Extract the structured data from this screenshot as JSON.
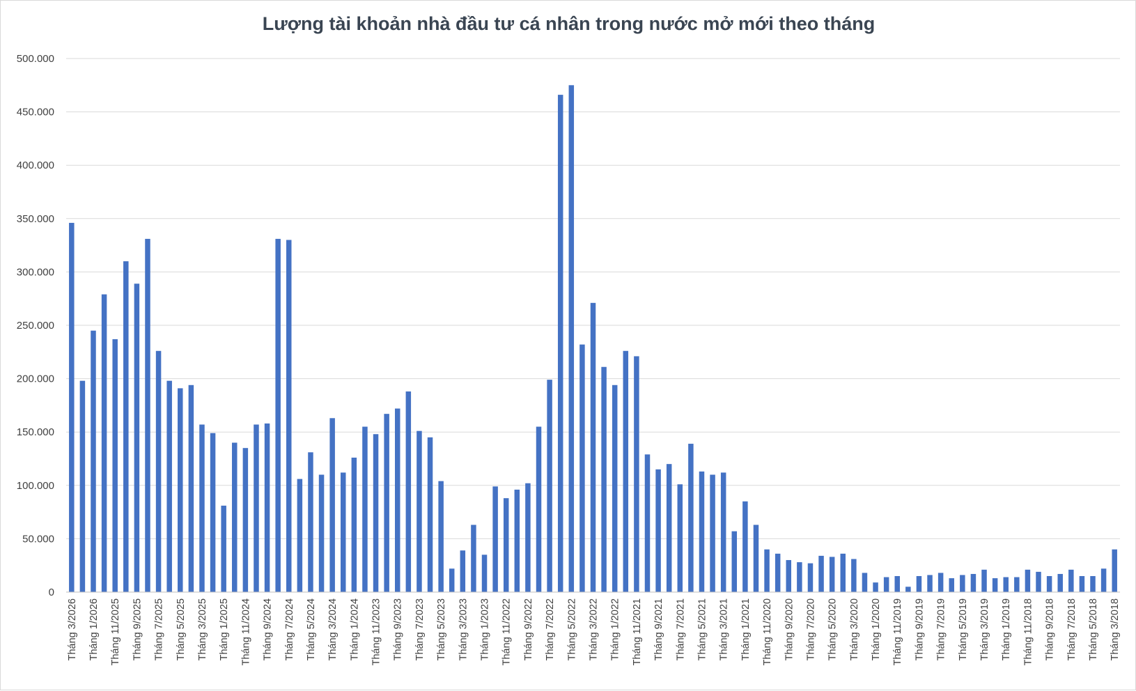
{
  "chart_data": {
    "type": "bar",
    "title": "Lượng tài khoản nhà đầu tư cá nhân trong nước mở mới theo tháng",
    "xlabel": "",
    "ylabel": "",
    "ylim": [
      0,
      500000
    ],
    "yticks": [
      0,
      50000,
      100000,
      150000,
      200000,
      250000,
      300000,
      350000,
      400000,
      450000,
      500000
    ],
    "ytick_labels": [
      "0",
      "50.000",
      "100.000",
      "150.000",
      "200.000",
      "250.000",
      "300.000",
      "350.000",
      "400.000",
      "450.000",
      "500.000"
    ],
    "grid": true,
    "legend": "none",
    "bar_color": "#4472c4",
    "categories": [
      "Tháng 3/2026",
      "Tháng 2/2026",
      "Tháng 1/2026",
      "Tháng 12/2025",
      "Tháng 11/2025",
      "Tháng 10/2025",
      "Tháng 9/2025",
      "Tháng 8/2025",
      "Tháng 7/2025",
      "Tháng 6/2025",
      "Tháng 5/2025",
      "Tháng 4/2025",
      "Tháng 3/2025",
      "Tháng 2/2025",
      "Tháng 1/2025",
      "Tháng 12/2024",
      "Tháng 11/2024",
      "Tháng 10/2024",
      "Tháng 9/2024",
      "Tháng 8/2024",
      "Tháng 7/2024",
      "Tháng 6/2024",
      "Tháng 5/2024",
      "Tháng 4/2024",
      "Tháng 3/2024",
      "Tháng 2/2024",
      "Tháng 1/2024",
      "Tháng 12/2023",
      "Tháng 11/2023",
      "Tháng 10/2023",
      "Tháng 9/2023",
      "Tháng 8/2023",
      "Tháng 7/2023",
      "Tháng 6/2023",
      "Tháng 5/2023",
      "Tháng 4/2023",
      "Tháng 3/2023",
      "Tháng 2/2023",
      "Tháng 1/2023",
      "Tháng 12/2022",
      "Tháng 11/2022",
      "Tháng 10/2022",
      "Tháng 9/2022",
      "Tháng 8/2022",
      "Tháng 7/2022",
      "Tháng 6/2022",
      "Tháng 5/2022",
      "Tháng 4/2022",
      "Tháng 3/2022",
      "Tháng 2/2022",
      "Tháng 1/2022",
      "Tháng 12/2021",
      "Tháng 11/2021",
      "Tháng 10/2021",
      "Tháng 9/2021",
      "Tháng 8/2021",
      "Tháng 7/2021",
      "Tháng 6/2021",
      "Tháng 5/2021",
      "Tháng 4/2021",
      "Tháng 3/2021",
      "Tháng 2/2021",
      "Tháng 1/2021",
      "Tháng 12/2020",
      "Tháng 11/2020",
      "Tháng 10/2020",
      "Tháng 9/2020",
      "Tháng 8/2020",
      "Tháng 7/2020",
      "Tháng 6/2020",
      "Tháng 5/2020",
      "Tháng 4/2020",
      "Tháng 3/2020",
      "Tháng 2/2020",
      "Tháng 1/2020",
      "Tháng 12/2019",
      "Tháng 11/2019",
      "Tháng 10/2019",
      "Tháng 9/2019",
      "Tháng 8/2019",
      "Tháng 7/2019",
      "Tháng 6/2019",
      "Tháng 5/2019",
      "Tháng 4/2019",
      "Tháng 3/2019",
      "Tháng 2/2019",
      "Tháng 1/2019",
      "Tháng 12/2018",
      "Tháng 11/2018",
      "Tháng 10/2018",
      "Tháng 9/2018",
      "Tháng 8/2018",
      "Tháng 7/2018",
      "Tháng 6/2018",
      "Tháng 5/2018",
      "Tháng 4/2018",
      "Tháng 3/2018"
    ],
    "shown_category_labels": [
      "Tháng 3/2026",
      "Tháng 1/2026",
      "Tháng 11/2025",
      "Tháng 9/2025",
      "Tháng 7/2025",
      "Tháng 5/2025",
      "Tháng 3/2025",
      "Tháng 1/2025",
      "Tháng 11/2024",
      "Tháng 9/2024",
      "Tháng 7/2024",
      "Tháng 5/2024",
      "Tháng 3/2024",
      "Tháng 1/2024",
      "Tháng 11/2023",
      "Tháng 9/2023",
      "Tháng 7/2023",
      "Tháng 5/2023",
      "Tháng 3/2023",
      "Tháng 1/2023",
      "Tháng 11/2022",
      "Tháng 9/2022",
      "Tháng 7/2022",
      "Tháng 5/2022",
      "Tháng 3/2022",
      "Tháng 1/2022",
      "Tháng 11/2021",
      "Tháng 9/2021",
      "Tháng 7/2021",
      "Tháng 5/2021",
      "Tháng 3/2021",
      "Tháng 1/2021",
      "Tháng 11/2020",
      "Tháng 9/2020",
      "Tháng 7/2020",
      "Tháng 5/2020",
      "Tháng 3/2020",
      "Tháng 1/2020",
      "Tháng 11/2019",
      "Tháng 9/2019",
      "Tháng 7/2019",
      "Tháng 5/2019",
      "Tháng 3/2019",
      "Tháng 1/2019",
      "Tháng 11/2018",
      "Tháng 9/2018",
      "Tháng 7/2018",
      "Tháng 5/2018",
      "Tháng 3/2018"
    ],
    "values": [
      346000,
      198000,
      245000,
      279000,
      237000,
      310000,
      289000,
      331000,
      226000,
      198000,
      191000,
      194000,
      157000,
      149000,
      81000,
      140000,
      135000,
      157000,
      158000,
      331000,
      330000,
      106000,
      131000,
      110000,
      163000,
      112000,
      126000,
      155000,
      148000,
      167000,
      172000,
      188000,
      151000,
      145000,
      104000,
      22000,
      39000,
      63000,
      35000,
      99000,
      88000,
      96000,
      102000,
      155000,
      199000,
      466000,
      475000,
      232000,
      271000,
      211000,
      194000,
      226000,
      221000,
      129000,
      115000,
      120000,
      101000,
      139000,
      113000,
      110000,
      112000,
      57000,
      85000,
      63000,
      40000,
      36000,
      30000,
      28000,
      27000,
      34000,
      33000,
      36000,
      31000,
      18000,
      9000,
      14000,
      15000,
      5000,
      15000,
      16000,
      18000,
      13000,
      16000,
      17000,
      21000,
      13000,
      14000,
      14000,
      21000,
      19000,
      15000,
      17000,
      21000,
      15000,
      15000,
      22000,
      40000
    ]
  }
}
